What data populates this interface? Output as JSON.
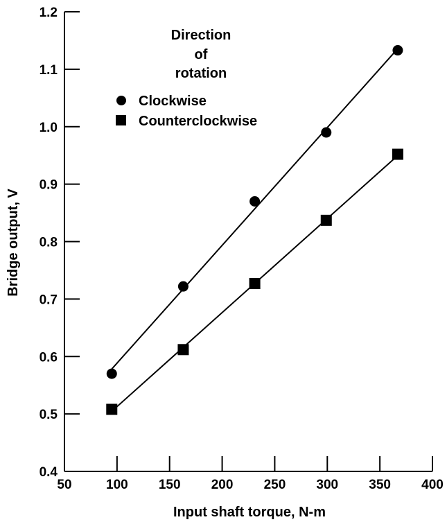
{
  "chart_data": {
    "type": "scatter",
    "xlabel": "Input shaft torque, N-m",
    "ylabel": "Bridge output, V",
    "xlim": [
      50,
      400
    ],
    "ylim": [
      0.4,
      1.2
    ],
    "xticks": [
      "50",
      "100",
      "150",
      "200",
      "250",
      "300",
      "350",
      "400"
    ],
    "yticks": [
      "0.4",
      "0.5",
      "0.6",
      "0.7",
      "0.8",
      "0.9",
      "1.0",
      "1.1",
      "1.2"
    ],
    "legend": {
      "title_lines": [
        "Direction",
        "of",
        "rotation"
      ],
      "placement": "top-left"
    },
    "grid": false,
    "series": [
      {
        "name": "Clockwise",
        "marker": "circle",
        "fit": "linear",
        "x": [
          95,
          163,
          231,
          299,
          367
        ],
        "y": [
          0.57,
          0.722,
          0.87,
          0.99,
          1.133
        ]
      },
      {
        "name": "Counterclockwise",
        "marker": "square",
        "fit": "linear",
        "x": [
          95,
          163,
          231,
          299,
          367
        ],
        "y": [
          0.508,
          0.612,
          0.727,
          0.837,
          0.952
        ]
      }
    ]
  }
}
